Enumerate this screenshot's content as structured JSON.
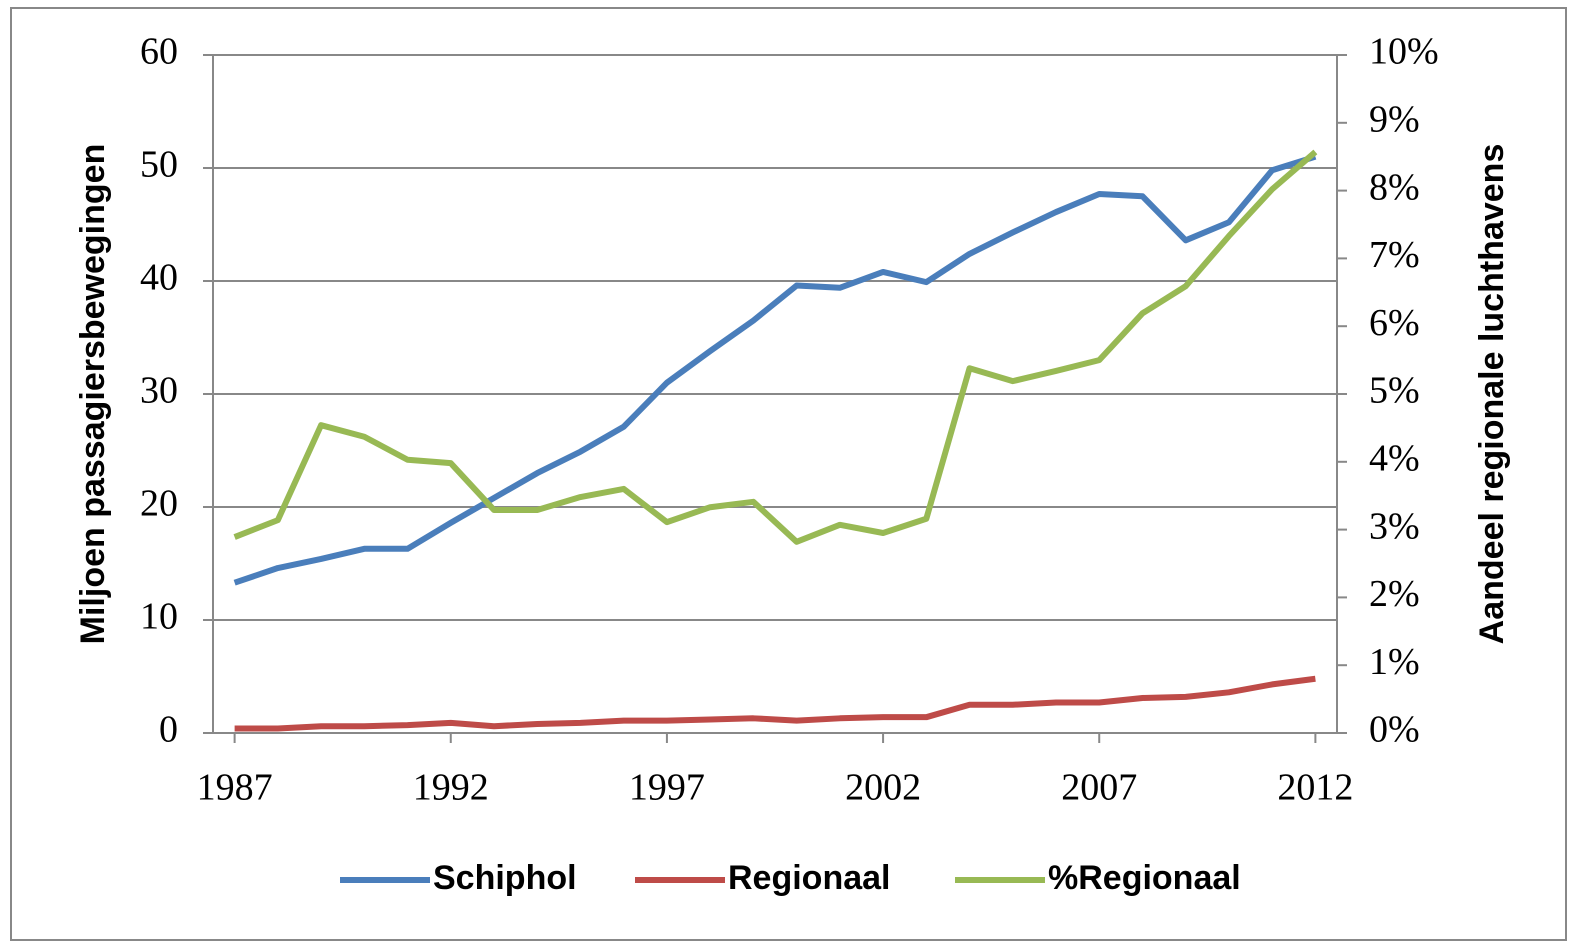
{
  "chart_data": {
    "type": "line",
    "y_label": "Miljoen passagiersbewegingen",
    "y2_label": "Aandeel regionale luchthavens",
    "x": [
      1987,
      1988,
      1989,
      1990,
      1991,
      1992,
      1993,
      1994,
      1995,
      1996,
      1997,
      1998,
      1999,
      2000,
      2001,
      2002,
      2003,
      2004,
      2005,
      2006,
      2007,
      2008,
      2009,
      2010,
      2011,
      2012
    ],
    "xlim": [
      1986.5,
      2012.5
    ],
    "xticks": [
      1987,
      1992,
      1997,
      2002,
      2007,
      2012
    ],
    "ylim": [
      0,
      60
    ],
    "yticks": [
      0,
      10,
      20,
      30,
      40,
      50,
      60
    ],
    "y2lim": [
      0,
      10
    ],
    "y2ticks": [
      {
        "value": 0,
        "label": "0%"
      },
      {
        "value": 1,
        "label": "1%"
      },
      {
        "value": 2,
        "label": "2%"
      },
      {
        "value": 3,
        "label": "3%"
      },
      {
        "value": 4,
        "label": "4%"
      },
      {
        "value": 5,
        "label": "5%"
      },
      {
        "value": 6,
        "label": "6%"
      },
      {
        "value": 7,
        "label": "7%"
      },
      {
        "value": 8,
        "label": "8%"
      },
      {
        "value": 9,
        "label": "9%"
      },
      {
        "value": 10,
        "label": "10%"
      }
    ],
    "grid": true,
    "legend": "bottom",
    "series": [
      {
        "name": "Schiphol",
        "color": "#4a7ebb",
        "values": [
          13.3,
          14.6,
          15.4,
          16.3,
          16.3,
          18.6,
          20.8,
          23.0,
          24.9,
          27.1,
          31.0,
          33.8,
          36.5,
          39.6,
          39.4,
          40.8,
          39.9,
          42.4,
          44.3,
          46.1,
          47.7,
          47.5,
          43.6,
          45.2,
          49.8,
          51.0
        ]
      },
      {
        "name": "Regionaal",
        "color": "#be4b48",
        "values": [
          0.4,
          0.4,
          0.6,
          0.6,
          0.7,
          0.9,
          0.6,
          0.8,
          0.9,
          1.1,
          1.1,
          1.2,
          1.3,
          1.1,
          1.3,
          1.4,
          1.4,
          2.5,
          2.5,
          2.7,
          2.7,
          3.1,
          3.2,
          3.6,
          4.3,
          4.8
        ]
      },
      {
        "name": "%Regionaal",
        "color": "#98b954",
        "axis": "y2",
        "values": [
          2.89,
          3.14,
          4.54,
          4.37,
          4.03,
          3.98,
          3.29,
          3.29,
          3.48,
          3.6,
          3.11,
          3.33,
          3.41,
          2.82,
          3.07,
          2.95,
          3.16,
          5.38,
          5.19,
          5.34,
          5.5,
          6.19,
          6.59,
          7.33,
          8.02,
          8.57
        ]
      }
    ]
  }
}
